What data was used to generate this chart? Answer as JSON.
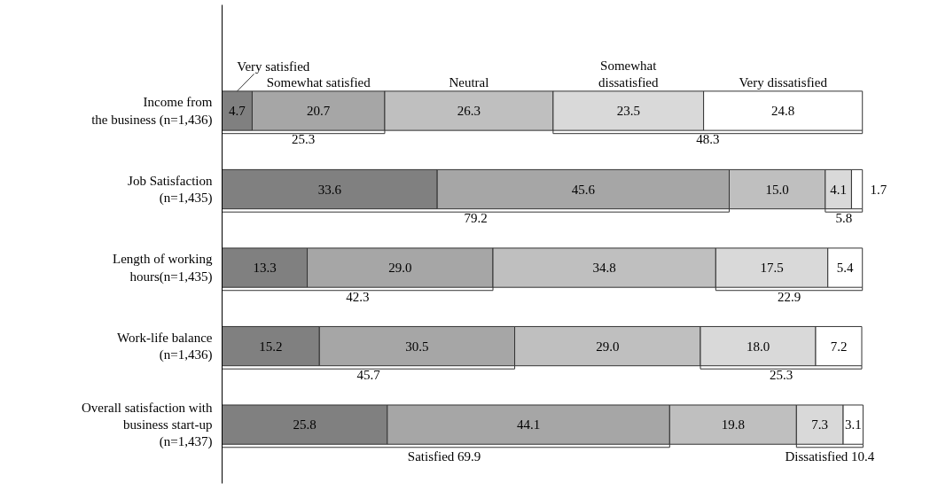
{
  "chart_data": {
    "type": "bar",
    "orientation": "horizontal",
    "stacked": true,
    "legend": "top",
    "grid": false,
    "tick_labels": "y",
    "xlim": [
      0,
      100
    ],
    "categories": [
      "Income from\nthe business (n=1,436)",
      "Job Satisfaction\n(n=1,435)",
      "Length of working\nhours(n=1,435)",
      "Work-life balance\n(n=1,436)",
      "Overall satisfaction with\nbusiness start-up\n(n=1,437)"
    ],
    "series": [
      {
        "name": "Very satisfied",
        "color": "#808080",
        "values": [
          4.7,
          33.6,
          13.3,
          15.2,
          25.8
        ],
        "value_labels": [
          "4.7",
          "33.6",
          "13.3",
          "15.2",
          "25.8"
        ]
      },
      {
        "name": "Somewhat satisfied",
        "color": "#a6a6a6",
        "values": [
          20.7,
          45.6,
          29.0,
          30.5,
          44.1
        ],
        "value_labels": [
          "20.7",
          "45.6",
          "29.0",
          "30.5",
          "44.1"
        ]
      },
      {
        "name": "Neutral",
        "color": "#bfbfbf",
        "values": [
          26.3,
          15.0,
          34.8,
          29.0,
          19.8
        ],
        "value_labels": [
          "26.3",
          "15.0",
          "34.8",
          "29.0",
          "19.8"
        ]
      },
      {
        "name": "Somewhat\ndissatisfied",
        "color": "#d9d9d9",
        "values": [
          23.5,
          4.1,
          17.5,
          18.0,
          7.3
        ],
        "value_labels": [
          "23.5",
          "4.1",
          "17.5",
          "18.0",
          "7.3"
        ]
      },
      {
        "name": "Very dissatisfied",
        "color": "#ffffff",
        "values": [
          24.8,
          1.7,
          5.4,
          7.2,
          3.1
        ],
        "value_labels": [
          "24.8",
          "1.7",
          "5.4",
          "7.2",
          "3.1"
        ]
      }
    ],
    "annotations": [
      "25.3",
      "48.3",
      "79.2",
      "5.8",
      "42.3",
      "22.9",
      "45.7",
      "25.3",
      "Satisfied  69.9",
      "Dissatisfied 10.4"
    ]
  }
}
